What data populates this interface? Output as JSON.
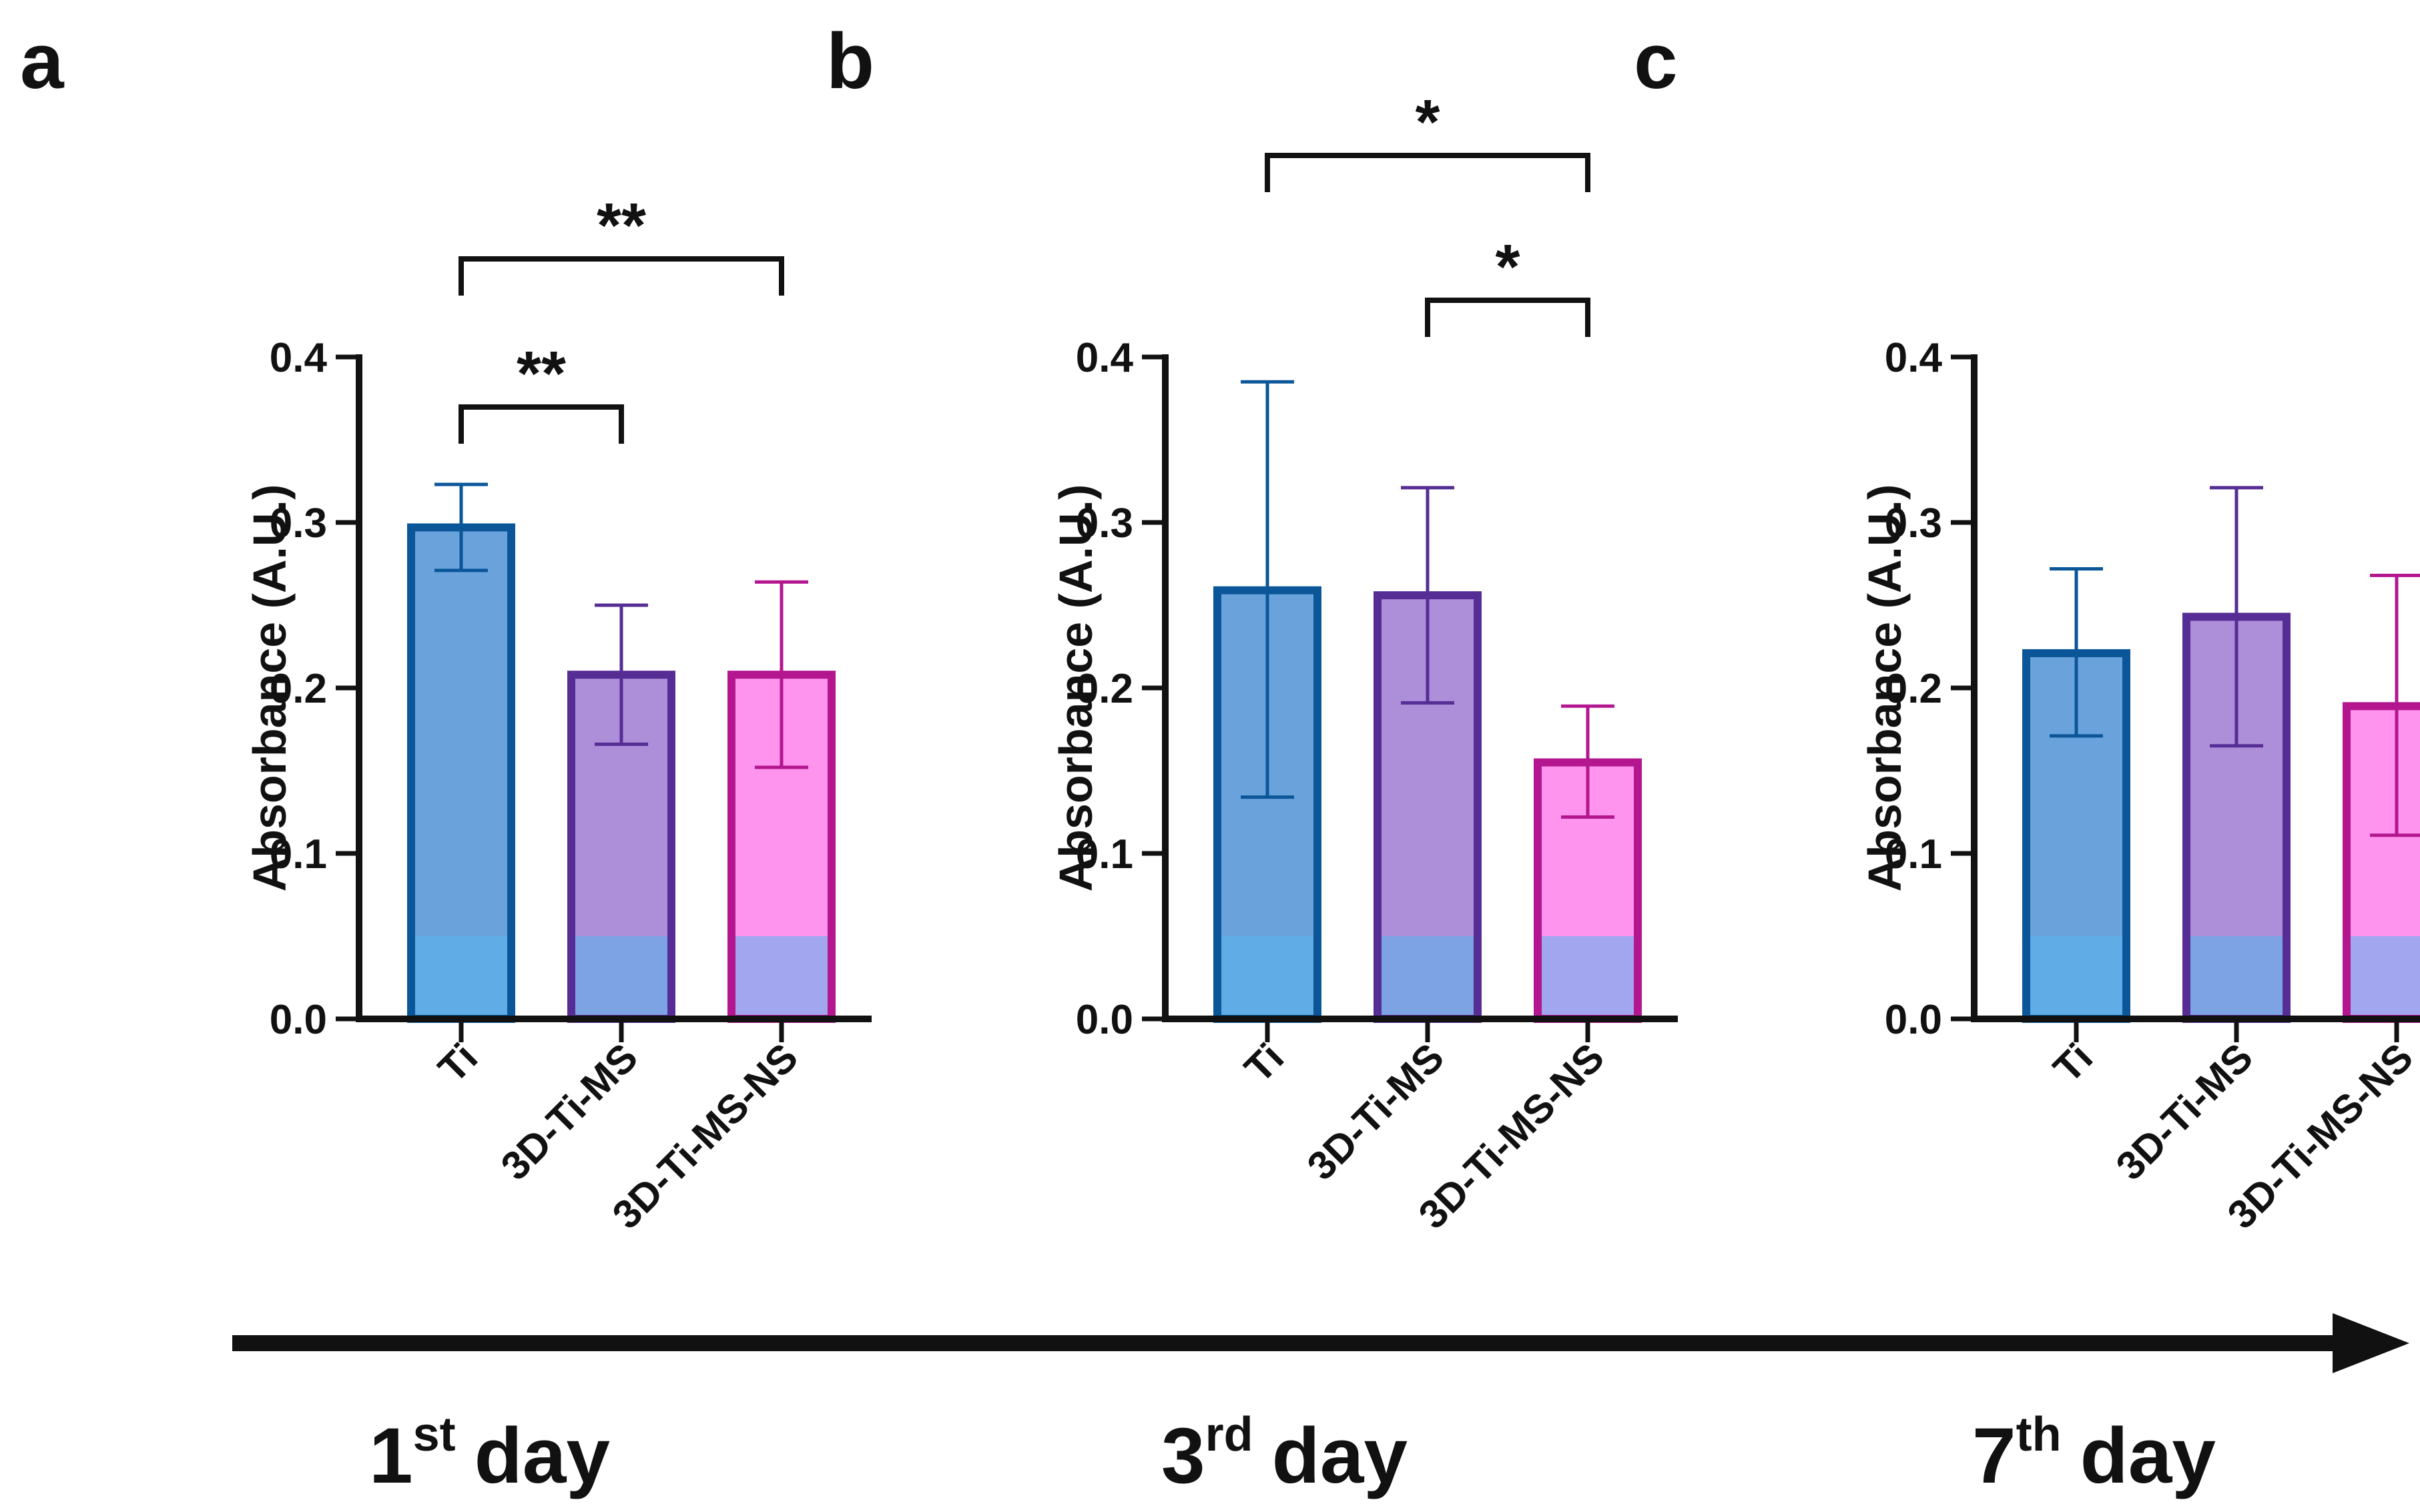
{
  "chart_data": [
    {
      "panel": "a",
      "type": "bar",
      "categories": [
        "Ti",
        "3D-Ti-MS",
        "3D-Ti-MS-NS"
      ],
      "values": [
        0.297,
        0.208,
        0.208
      ],
      "error_upper": [
        0.323,
        0.25,
        0.264
      ],
      "error_lower": [
        0.271,
        0.166,
        0.152
      ],
      "ylabel": "Absorbance (A.U.)",
      "ylim": [
        0.0,
        0.4
      ],
      "yticks": [
        "0.0",
        "0.1",
        "0.2",
        "0.3",
        "0.4"
      ],
      "significance": [
        {
          "from": 0,
          "to": 1,
          "label": "**"
        },
        {
          "from": 0,
          "to": 2,
          "label": "**"
        }
      ]
    },
    {
      "panel": "b",
      "type": "bar",
      "categories": [
        "Ti",
        "3D-Ti-MS",
        "3D-Ti-MS-NS"
      ],
      "values": [
        0.259,
        0.256,
        0.155
      ],
      "error_upper": [
        0.385,
        0.321,
        0.189
      ],
      "error_lower": [
        0.134,
        0.191,
        0.122
      ],
      "ylabel": "Absorbance (A.U.)",
      "ylim": [
        0.0,
        0.4
      ],
      "yticks": [
        "0.0",
        "0.1",
        "0.2",
        "0.3",
        "0.4"
      ],
      "significance": [
        {
          "from": 1,
          "to": 2,
          "label": "*"
        },
        {
          "from": 0,
          "to": 2,
          "label": "*"
        }
      ]
    },
    {
      "panel": "c",
      "type": "bar",
      "categories": [
        "Ti",
        "3D-Ti-MS",
        "3D-Ti-MS-NS"
      ],
      "values": [
        0.221,
        0.243,
        0.189
      ],
      "error_upper": [
        0.272,
        0.321,
        0.268
      ],
      "error_lower": [
        0.171,
        0.165,
        0.111
      ],
      "ylabel": "Absorbance (A.U.)",
      "ylim": [
        0.0,
        0.4
      ],
      "yticks": [
        "0.0",
        "0.1",
        "0.2",
        "0.3",
        "0.4"
      ],
      "significance": []
    }
  ],
  "timeline": {
    "days": [
      {
        "number": "1",
        "suffix": "st",
        "word": "day"
      },
      {
        "number": "3",
        "suffix": "rd",
        "word": "day"
      },
      {
        "number": "7",
        "suffix": "th",
        "word": "day"
      }
    ]
  },
  "colors": {
    "bar_fills": [
      "#6aa3dc",
      "#ad8fd9",
      "#ff94ee"
    ],
    "bar_strokes": [
      "#0a5699",
      "#552d94",
      "#b3168f"
    ],
    "axis": "#111111"
  }
}
